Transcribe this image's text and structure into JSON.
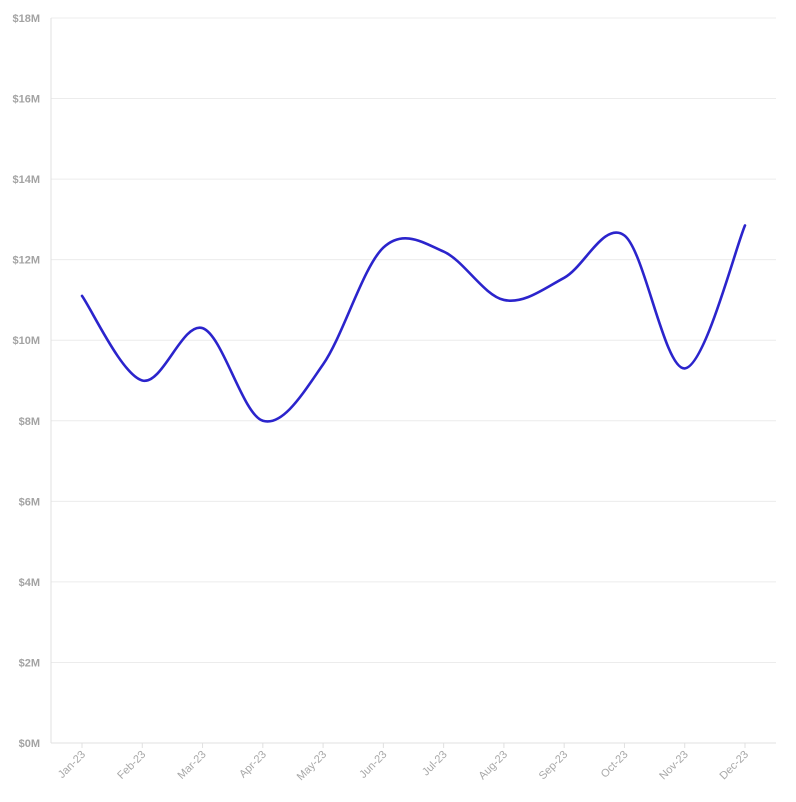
{
  "chart_data": {
    "type": "line",
    "title": "",
    "xlabel": "",
    "ylabel": "",
    "categories": [
      "Jan-23",
      "Feb-23",
      "Mar-23",
      "Apr-23",
      "May-23",
      "Jun-23",
      "Jul-23",
      "Aug-23",
      "Sep-23",
      "Oct-23",
      "Nov-23",
      "Dec-23"
    ],
    "series": [
      {
        "values": [
          11.1,
          9.0,
          10.3,
          8.0,
          9.4,
          12.3,
          12.2,
          11.0,
          11.55,
          12.6,
          9.3,
          12.85
        ],
        "color": "#2b24cc"
      }
    ],
    "ylim": [
      0,
      18
    ],
    "yticks": [
      0,
      2,
      4,
      6,
      8,
      10,
      12,
      14,
      16,
      18
    ],
    "ytick_labels": [
      "$0M",
      "$2M",
      "$4M",
      "$6M",
      "$8M",
      "$10M",
      "$12M",
      "$14M",
      "$16M",
      "$18M"
    ],
    "grid": true,
    "legend": "none"
  }
}
